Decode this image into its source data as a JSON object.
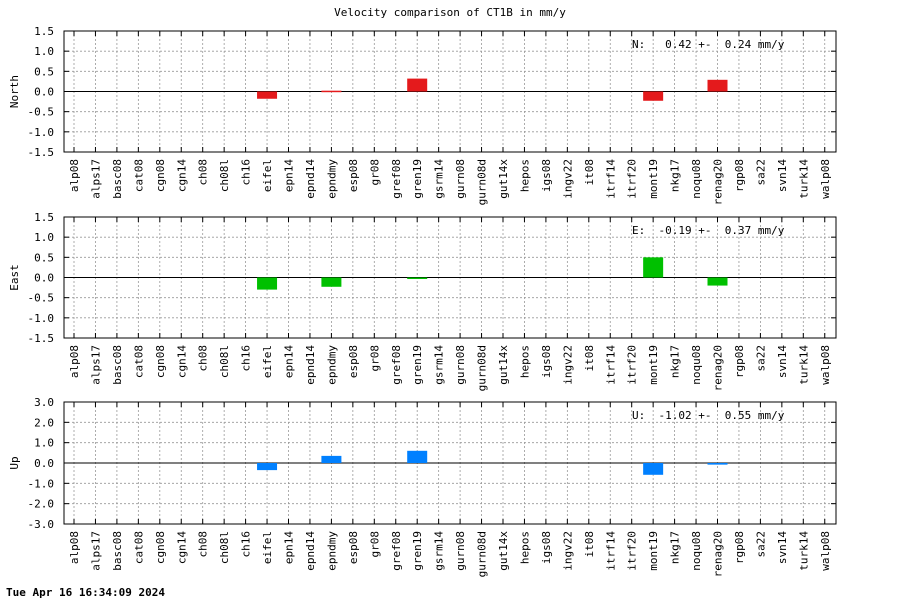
{
  "title": "Velocity comparison of CT1B in mm/y",
  "footer": "Tue Apr 16 16:34:09 2024",
  "chart_data": [
    {
      "type": "bar",
      "ylabel": "North",
      "ylim": [
        -1.5,
        1.5
      ],
      "yticks": [
        -1.5,
        -1.0,
        -0.5,
        0.0,
        0.5,
        1.0,
        1.5
      ],
      "tick_labels": [
        "-1.5",
        "-1.0",
        "-0.5",
        "0.0",
        "0.5",
        "1.0",
        "1.5"
      ],
      "annotation": "N:   0.42 +-  0.24 mm/y",
      "color": "#e41a1c",
      "grid": true,
      "categories": [
        "alp08",
        "alps17",
        "basc08",
        "cat08",
        "cgn08",
        "cgn14",
        "ch08",
        "ch08l",
        "ch16",
        "eifel",
        "epn14",
        "epnd14",
        "epndmy",
        "esp08",
        "gr08",
        "gref08",
        "gren19",
        "gsrm14",
        "gurn08",
        "gurn08d",
        "gut14x",
        "hepos",
        "igs08",
        "ingv22",
        "it08",
        "itrf14",
        "itrf20",
        "mont19",
        "nkg17",
        "noqu08",
        "renag20",
        "rgp08",
        "sa22",
        "svn14",
        "turk14",
        "walp08"
      ],
      "values": [
        0,
        0,
        0,
        0,
        0,
        0,
        0,
        0,
        0,
        -0.18,
        0,
        0,
        0.02,
        0,
        0,
        0,
        0.32,
        0,
        0,
        0,
        0,
        0,
        0,
        0,
        0,
        0,
        0,
        -0.23,
        0,
        0,
        0.29,
        0,
        0,
        0,
        0,
        0
      ]
    },
    {
      "type": "bar",
      "ylabel": "East",
      "ylim": [
        -1.5,
        1.5
      ],
      "yticks": [
        -1.5,
        -1.0,
        -0.5,
        0.0,
        0.5,
        1.0,
        1.5
      ],
      "tick_labels": [
        "-1.5",
        "-1.0",
        "-0.5",
        "0.0",
        "0.5",
        "1.0",
        "1.5"
      ],
      "annotation": "E:  -0.19 +-  0.37 mm/y",
      "color": "#00c000",
      "grid": true,
      "categories": [
        "alp08",
        "alps17",
        "basc08",
        "cat08",
        "cgn08",
        "cgn14",
        "ch08",
        "ch08l",
        "ch16",
        "eifel",
        "epn14",
        "epnd14",
        "epndmy",
        "esp08",
        "gr08",
        "gref08",
        "gren19",
        "gsrm14",
        "gurn08",
        "gurn08d",
        "gut14x",
        "hepos",
        "igs08",
        "ingv22",
        "it08",
        "itrf14",
        "itrf20",
        "mont19",
        "nkg17",
        "noqu08",
        "renag20",
        "rgp08",
        "sa22",
        "svn14",
        "turk14",
        "walp08"
      ],
      "values": [
        0,
        0,
        0,
        0,
        0,
        0,
        0,
        0,
        0,
        -0.3,
        0,
        0,
        -0.23,
        0,
        0,
        0,
        -0.03,
        0,
        0,
        0,
        0,
        0,
        0,
        0,
        0,
        0,
        0,
        0.5,
        0,
        0,
        -0.2,
        0,
        0,
        0,
        0,
        0
      ]
    },
    {
      "type": "bar",
      "ylabel": "Up",
      "ylim": [
        -3.0,
        3.0
      ],
      "yticks": [
        -3.0,
        -2.0,
        -1.0,
        0.0,
        1.0,
        2.0,
        3.0
      ],
      "tick_labels": [
        "-3.0",
        "-2.0",
        "-1.0",
        "0.0",
        "1.0",
        "2.0",
        "3.0"
      ],
      "annotation": "U:  -1.02 +-  0.55 mm/y",
      "color": "#0080ff",
      "grid": true,
      "categories": [
        "alp08",
        "alps17",
        "basc08",
        "cat08",
        "cgn08",
        "cgn14",
        "ch08",
        "ch08l",
        "ch16",
        "eifel",
        "epn14",
        "epnd14",
        "epndmy",
        "esp08",
        "gr08",
        "gref08",
        "gren19",
        "gsrm14",
        "gurn08",
        "gurn08d",
        "gut14x",
        "hepos",
        "igs08",
        "ingv22",
        "it08",
        "itrf14",
        "itrf20",
        "mont19",
        "nkg17",
        "noqu08",
        "renag20",
        "rgp08",
        "sa22",
        "svn14",
        "turk14",
        "walp08"
      ],
      "values": [
        0,
        0,
        0,
        0,
        0,
        0,
        0,
        0,
        0,
        -0.35,
        0,
        0,
        0.35,
        0,
        0,
        0,
        0.6,
        0,
        0,
        0,
        0,
        0,
        0,
        0,
        0,
        0,
        0,
        -0.58,
        0,
        0,
        -0.08,
        0,
        0,
        0,
        0,
        0
      ]
    }
  ]
}
